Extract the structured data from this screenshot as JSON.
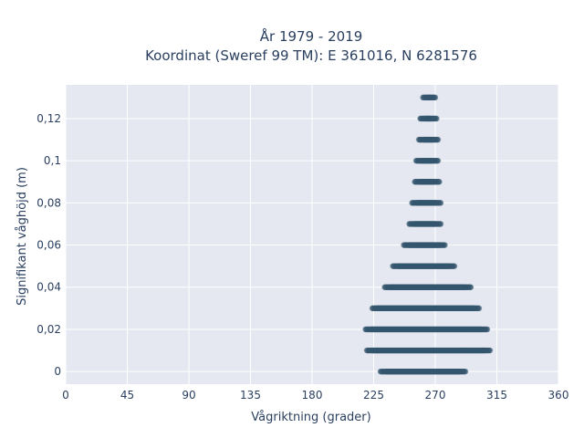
{
  "chart_data": {
    "type": "scatter",
    "title_lines": [
      "År 1979 - 2019",
      "Koordinat (Sweref 99 TM): E 361016, N 6281576"
    ],
    "xlabel": "Vågriktning (grader)",
    "ylabel": "Signifikant våghöjd (m)",
    "xlim": [
      0,
      360
    ],
    "ylim": [
      -0.006,
      0.136
    ],
    "x_ticks": [
      0,
      45,
      90,
      135,
      180,
      225,
      270,
      315,
      360
    ],
    "y_ticks": [
      0,
      0.02,
      0.04,
      0.06,
      0.08,
      0.1,
      0.12
    ],
    "y_tick_labels": [
      "0",
      "0,02",
      "0,04",
      "0,06",
      "0,08",
      "0,1",
      "0,12"
    ],
    "grid": true,
    "marker_color": "#34566e",
    "plot_background": "#e5e8f0",
    "series": [
      {
        "values": [
          {
            "height": 0,
            "dir_min": 230,
            "dir_max": 292
          },
          {
            "height": 0.01,
            "dir_min": 220,
            "dir_max": 310
          },
          {
            "height": 0.02,
            "dir_min": 219,
            "dir_max": 308
          },
          {
            "height": 0.03,
            "dir_min": 224,
            "dir_max": 302
          },
          {
            "height": 0.04,
            "dir_min": 233,
            "dir_max": 296
          },
          {
            "height": 0.05,
            "dir_min": 239,
            "dir_max": 284
          },
          {
            "height": 0.06,
            "dir_min": 247,
            "dir_max": 277
          },
          {
            "height": 0.07,
            "dir_min": 251,
            "dir_max": 274
          },
          {
            "height": 0.08,
            "dir_min": 253,
            "dir_max": 274
          },
          {
            "height": 0.09,
            "dir_min": 255,
            "dir_max": 273
          },
          {
            "height": 0.1,
            "dir_min": 256,
            "dir_max": 272
          },
          {
            "height": 0.11,
            "dir_min": 258,
            "dir_max": 272
          },
          {
            "height": 0.12,
            "dir_min": 259,
            "dir_max": 271
          },
          {
            "height": 0.13,
            "dir_min": 261,
            "dir_max": 270
          }
        ]
      }
    ]
  }
}
